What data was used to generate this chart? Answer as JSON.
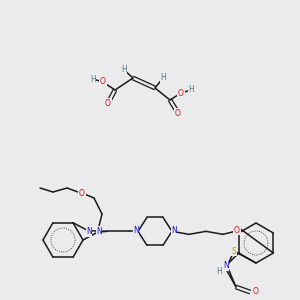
{
  "background_color": "#ebebed",
  "figsize": [
    3.0,
    3.0
  ],
  "dpi": 100,
  "atom_colors": {
    "C": "#2d4a52",
    "H": "#4a7a80",
    "N": "#1010cc",
    "O": "#cc1010",
    "S": "#aaaa00"
  },
  "bond_color": "#1a1a1a",
  "font_size": 5.5
}
